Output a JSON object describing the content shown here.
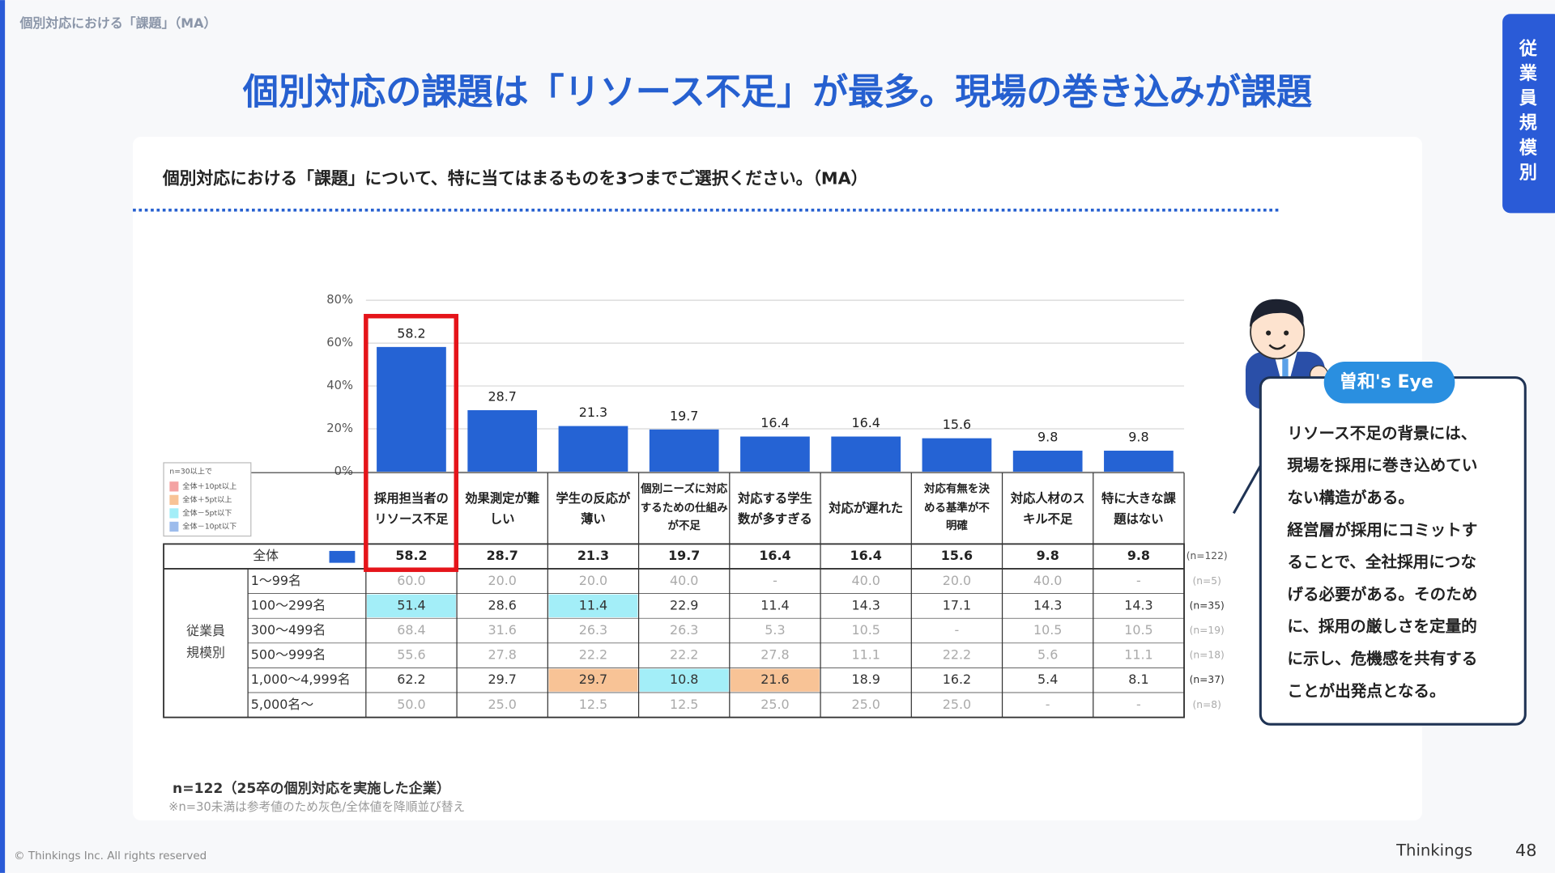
{
  "header": "個別対応における「課題」（MA）",
  "title": "個別対応の課題は「リソース不足」が最多。現場の巻き込みが課題",
  "side_tab": "従業員規模別",
  "question": "個別対応における「課題」について、特に当てはまるものを3つまでご選択ください。（MA）",
  "chart_data": {
    "type": "bar",
    "categories": [
      "採用担当者の\nリソース不足",
      "効果測定が難\nしい",
      "学生の反応が\n薄い",
      "個別ニーズに対応\nするための仕組み\nが不足",
      "対応する学生\n数が多すぎる",
      "対応が遅れた",
      "対応有無を決\nめる基準が不\n明確",
      "対応人材のス\nキル不足",
      "特に大きな課\n題はない"
    ],
    "values": [
      58.2,
      28.7,
      21.3,
      19.7,
      16.4,
      16.4,
      15.6,
      9.8,
      9.8
    ],
    "color": "#2563d4",
    "ylim": [
      0,
      80
    ],
    "yticks": [
      {
        "value": 0,
        "label": "0%"
      },
      {
        "value": 20,
        "label": "20%"
      },
      {
        "value": 40,
        "label": "40%"
      },
      {
        "value": 60,
        "label": "60%"
      },
      {
        "value": 80,
        "label": "80%"
      }
    ],
    "grid": true
  },
  "legend": {
    "title": "n=30以上で",
    "items": [
      {
        "label": "全体＋10pt以上",
        "color": "#f4a3a3"
      },
      {
        "label": "全体＋5pt以上",
        "color": "#f8c396"
      },
      {
        "label": "全体－5pt以下",
        "color": "#a3eef8"
      },
      {
        "label": "全体－10pt以下",
        "color": "#9dbcec"
      }
    ]
  },
  "table": {
    "total_label": "全体",
    "total_n": "(n=122)",
    "group_label": "従業員\n規模別",
    "rows": [
      {
        "label": "1～99名",
        "n": "(n=5)",
        "color": "#aaaaaa",
        "cells": [
          "60.0",
          "20.0",
          "20.0",
          "40.0",
          "-",
          "40.0",
          "20.0",
          "40.0",
          "-"
        ]
      },
      {
        "label": "100～299名",
        "n": "(n=35)",
        "color": "#333333",
        "cells": [
          {
            "text": "51.4",
            "color": "#a3eef8"
          },
          "28.6",
          {
            "text": "11.4",
            "color": "#a3eef8"
          },
          "22.9",
          "11.4",
          "14.3",
          "17.1",
          "14.3",
          "14.3"
        ]
      },
      {
        "label": "300～499名",
        "n": "(n=19)",
        "color": "#aaaaaa",
        "cells": [
          "68.4",
          "31.6",
          "26.3",
          "26.3",
          "5.3",
          "10.5",
          "-",
          "10.5",
          "10.5"
        ]
      },
      {
        "label": "500～999名",
        "n": "(n=18)",
        "color": "#aaaaaa",
        "cells": [
          "55.6",
          "27.8",
          "22.2",
          "22.2",
          "27.8",
          "11.1",
          "22.2",
          "5.6",
          "11.1"
        ]
      },
      {
        "label": "1,000～4,999名",
        "n": "(n=37)",
        "color": "#333333",
        "cells": [
          "62.2",
          "29.7",
          {
            "text": "29.7",
            "color": "#f8c396"
          },
          {
            "text": "10.8",
            "color": "#a3eef8"
          },
          {
            "text": "21.6",
            "color": "#f8c396"
          },
          "18.9",
          "16.2",
          "5.4",
          "8.1"
        ]
      },
      {
        "label": "5,000名～",
        "n": "(n=8)",
        "color": "#aaaaaa",
        "cells": [
          "50.0",
          "25.0",
          "12.5",
          "12.5",
          "25.0",
          "25.0",
          "25.0",
          "-",
          "-"
        ]
      }
    ]
  },
  "notes": [
    "n=122（25卒の個別対応を実施した企業）",
    "※n=30未満は参考値のため灰色/全体値を降順並び替え"
  ],
  "bubble": {
    "title": "曽和's Eye",
    "lines": [
      "リソース不足の背景には、",
      "現場を採用に巻き込めてい",
      "ない構造がある。",
      "経営層が採用にコミットす",
      "ることで、全社採用につな",
      "げる必要がある。そのため",
      "に、採用の厳しさを定量的",
      "に示し、危機感を共有する",
      "ことが出発点となる。"
    ]
  },
  "footer": {
    "copyright": "© Thinkings Inc. All rights reserved",
    "brand": "Thinkings",
    "page": "48"
  }
}
